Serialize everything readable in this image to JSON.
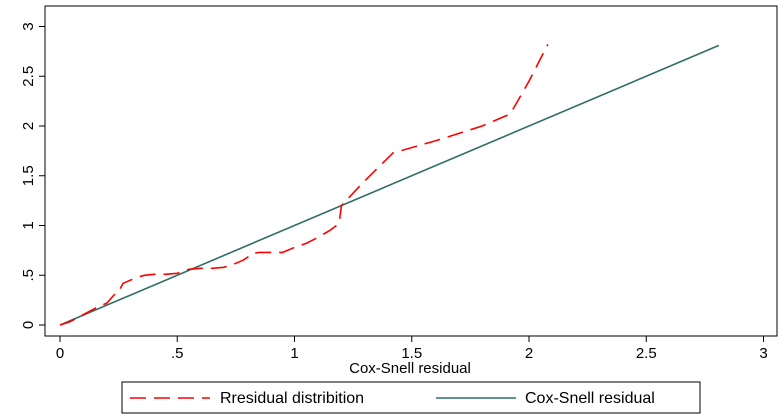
{
  "chart_data": {
    "type": "line",
    "title": "",
    "xlabel": "Cox-Snell residual",
    "ylabel": "",
    "xlim": [
      0,
      3
    ],
    "ylim": [
      0,
      3
    ],
    "x_ticks": [
      {
        "value": 0,
        "label": "0"
      },
      {
        "value": 0.5,
        "label": ".5"
      },
      {
        "value": 1,
        "label": "1"
      },
      {
        "value": 1.5,
        "label": "1.5"
      },
      {
        "value": 2,
        "label": "2"
      },
      {
        "value": 2.5,
        "label": "2.5"
      },
      {
        "value": 3,
        "label": "3"
      }
    ],
    "y_ticks": [
      {
        "value": 0,
        "label": "0"
      },
      {
        "value": 0.5,
        "label": ".5"
      },
      {
        "value": 1,
        "label": "1"
      },
      {
        "value": 1.5,
        "label": "1.5"
      },
      {
        "value": 2,
        "label": "2"
      },
      {
        "value": 2.5,
        "label": "2.5"
      },
      {
        "value": 3,
        "label": "3"
      }
    ],
    "grid": false,
    "legend_position": "bottom",
    "series": [
      {
        "name": "Rresidual distribition",
        "color": "#ff0000",
        "style": "dashed",
        "x": [
          0,
          0.04,
          0.08,
          0.12,
          0.16,
          0.2,
          0.23,
          0.25,
          0.26,
          0.27,
          0.3,
          0.33,
          0.36,
          0.4,
          0.45,
          0.5,
          0.55,
          0.6,
          0.65,
          0.7,
          0.75,
          0.78,
          0.8,
          0.82,
          0.85,
          0.9,
          0.95,
          1.0,
          1.05,
          1.1,
          1.15,
          1.19,
          1.2,
          1.3,
          1.42,
          1.6,
          1.8,
          1.9,
          1.92,
          2.0,
          2.08
        ],
        "y": [
          0,
          0.03,
          0.08,
          0.13,
          0.18,
          0.22,
          0.3,
          0.33,
          0.38,
          0.42,
          0.45,
          0.48,
          0.5,
          0.51,
          0.51,
          0.52,
          0.56,
          0.57,
          0.57,
          0.58,
          0.62,
          0.65,
          0.68,
          0.72,
          0.73,
          0.73,
          0.73,
          0.78,
          0.82,
          0.88,
          0.95,
          1.02,
          1.2,
          1.45,
          1.73,
          1.85,
          2.0,
          2.1,
          2.12,
          2.45,
          2.82
        ]
      },
      {
        "name": "Cox-Snell residual",
        "color": "#2f6f68",
        "style": "solid",
        "x": [
          0,
          2.81
        ],
        "y": [
          0,
          2.81
        ]
      }
    ]
  }
}
